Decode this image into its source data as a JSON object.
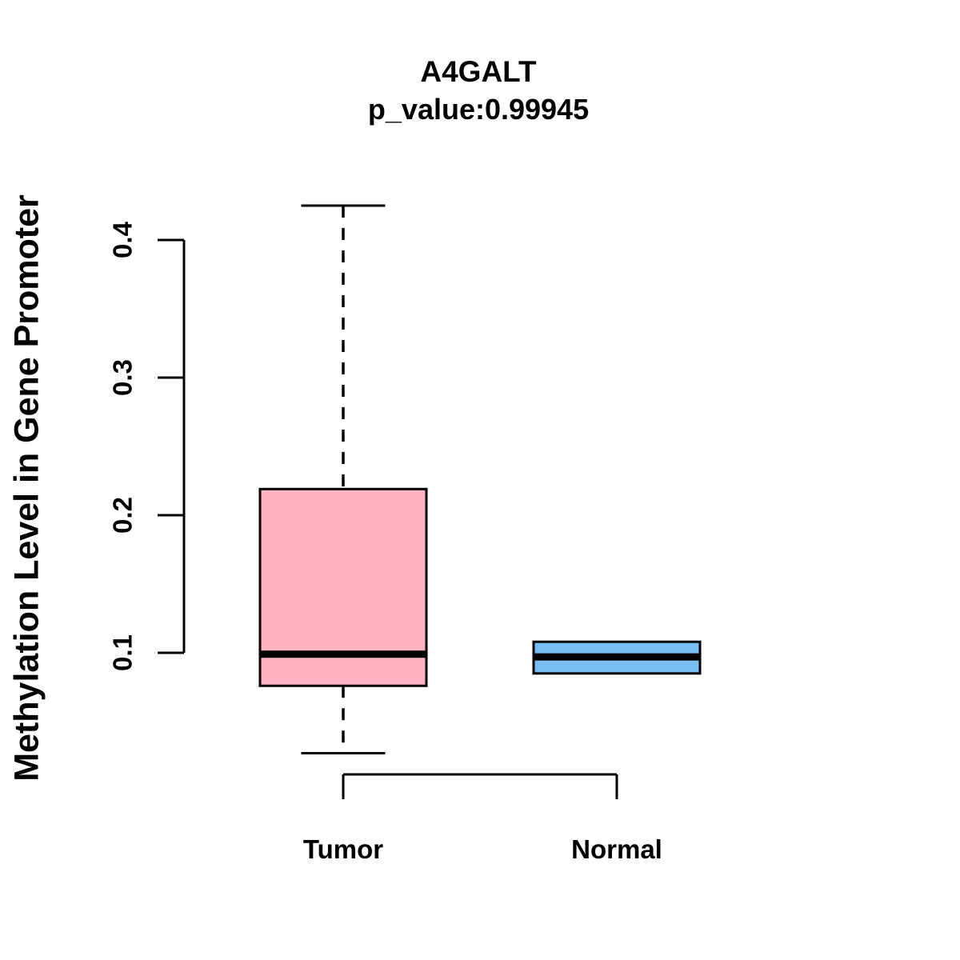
{
  "figure": {
    "background_color": "#ffffff",
    "text_color": "#000000"
  },
  "chart_data": {
    "type": "boxplot",
    "title": "A4GALT",
    "subtitle": "p_value:0.99945",
    "p_value": 0.99945,
    "ylabel": "Methylation Level in Gene Promoter",
    "xlabel": "",
    "categories": [
      "Tumor",
      "Normal"
    ],
    "yticks": [
      0.1,
      0.2,
      0.3,
      0.4
    ],
    "ytick_labels": [
      "0.1",
      "0.2",
      "0.3",
      "0.4"
    ],
    "ylim": [
      0.025,
      0.43
    ],
    "grid": false,
    "legend": "none",
    "box_border_color": "#000000",
    "median_color": "#000000",
    "whisker_style": "dashed",
    "series": [
      {
        "name": "Tumor",
        "fill_color": "#FFB3C1",
        "whisker_low": 0.027,
        "q1": 0.076,
        "median": 0.099,
        "q3": 0.219,
        "whisker_high": 0.425,
        "show_whiskers": true
      },
      {
        "name": "Normal",
        "fill_color": "#77BEF5",
        "whisker_low": null,
        "q1": 0.085,
        "median": 0.097,
        "q3": 0.108,
        "whisker_high": null,
        "show_whiskers": false
      }
    ]
  }
}
